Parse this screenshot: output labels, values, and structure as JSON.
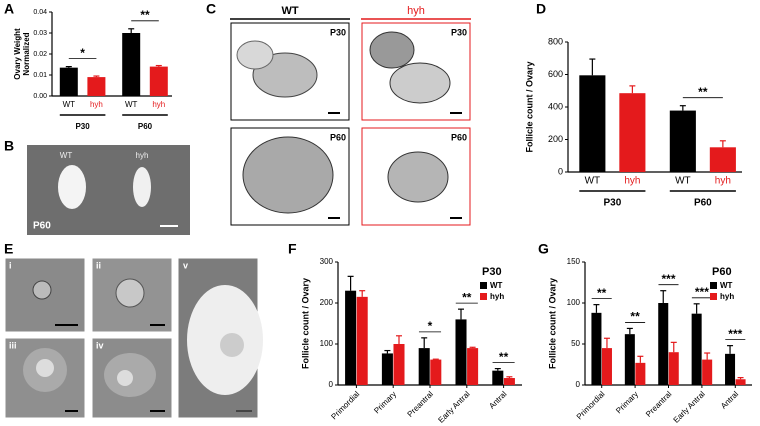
{
  "panel_letters": [
    "A",
    "B",
    "C",
    "D",
    "E",
    "F",
    "G"
  ],
  "panel_b": {
    "labels": [
      "WT",
      "hyh"
    ],
    "age": "P60"
  },
  "panel_c": {
    "columns": [
      "WT",
      "hyh"
    ],
    "ages": [
      "P30",
      "P30",
      "P60",
      "P60"
    ]
  },
  "panel_e": {
    "labels": [
      "i",
      "ii",
      "iii",
      "iv",
      "v"
    ]
  },
  "chart_data": [
    {
      "type": "bar",
      "ylabel": [
        "Ovary Weight",
        "Normalized"
      ],
      "categories": [
        "WT",
        "hyh",
        "WT",
        "hyh"
      ],
      "groups": [
        "P30",
        "P60"
      ],
      "colors": [
        "#000000",
        "#e41a1c",
        "#000000",
        "#e41a1c"
      ],
      "values": [
        0.0135,
        0.009,
        0.03,
        0.014
      ],
      "errors": [
        0.0005,
        0.0005,
        0.002,
        0.0005
      ],
      "significance": [
        "*",
        "**"
      ],
      "ylim": [
        0,
        0.04
      ],
      "yticks": [
        {
          "value": 0,
          "label": "0.00"
        },
        {
          "value": 0.01,
          "label": "0.01"
        },
        {
          "value": 0.02,
          "label": "0.02"
        },
        {
          "value": 0.03,
          "label": "0.03"
        },
        {
          "value": 0.04,
          "label": "0.04"
        }
      ]
    },
    {
      "type": "bar",
      "ylabel": "Follicle count / Ovary",
      "categories": [
        "WT",
        "hyh",
        "WT",
        "hyh"
      ],
      "groups": [
        "P30",
        "P60"
      ],
      "colors": [
        "#000000",
        "#e41a1c",
        "#000000",
        "#e41a1c"
      ],
      "values": [
        595,
        485,
        378,
        152
      ],
      "errors": [
        100,
        45,
        30,
        40
      ],
      "significance": [
        null,
        "**"
      ],
      "ylim": [
        0,
        800
      ],
      "yticks": [
        0,
        200,
        400,
        600,
        800
      ]
    },
    {
      "type": "grouped_bar",
      "title": "P30",
      "ylabel": "Follicle count / Ovary",
      "categories": [
        "Primordial",
        "Primary",
        "Preantral",
        "Early Antral",
        "Antral"
      ],
      "series": [
        {
          "name": "WT",
          "color": "#000000",
          "values": [
            230,
            77,
            90,
            160,
            35
          ],
          "errors": [
            35,
            7,
            25,
            25,
            5
          ]
        },
        {
          "name": "hyh",
          "color": "#e41a1c",
          "values": [
            215,
            100,
            62,
            90,
            17
          ],
          "errors": [
            15,
            20,
            1,
            2,
            3
          ]
        }
      ],
      "significance": [
        null,
        null,
        "*",
        "**",
        "**"
      ],
      "ylim": [
        0,
        300
      ],
      "yticks": [
        0,
        100,
        200,
        300
      ]
    },
    {
      "type": "grouped_bar",
      "title": "P60",
      "ylabel": "Follicle count / Ovary",
      "categories": [
        "Primordial",
        "Primary",
        "Preantral",
        "Early Antral",
        "Antral"
      ],
      "series": [
        {
          "name": "WT",
          "color": "#000000",
          "values": [
            88,
            62,
            100,
            87,
            38
          ],
          "errors": [
            10,
            7,
            15,
            12,
            10
          ]
        },
        {
          "name": "hyh",
          "color": "#e41a1c",
          "values": [
            45,
            27,
            40,
            31,
            7
          ],
          "errors": [
            12,
            8,
            12,
            8,
            2
          ]
        }
      ],
      "significance": [
        "**",
        "**",
        "***",
        "***",
        "***"
      ],
      "ylim": [
        0,
        150
      ],
      "yticks": [
        0,
        50,
        100,
        150
      ]
    }
  ]
}
